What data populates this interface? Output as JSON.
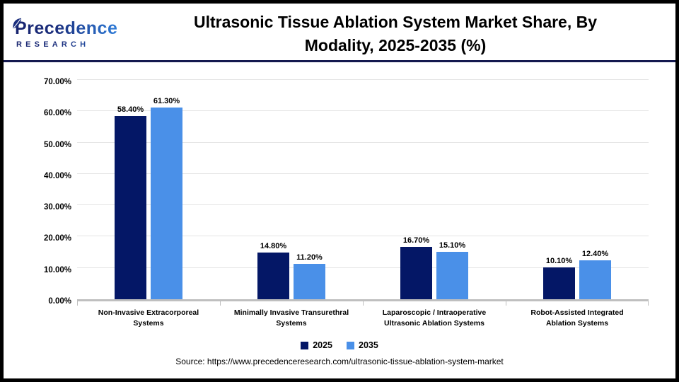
{
  "header": {
    "logo": {
      "line1": "Precedence",
      "line2": "RESEARCH"
    },
    "title_line1": "Ultrasonic Tissue Ablation System Market Share, By",
    "title_line2": "Modality, 2025-2035 (%)"
  },
  "chart_data": {
    "type": "bar",
    "title": "Ultrasonic Tissue Ablation System Market Share, By Modality, 2025-2035 (%)",
    "categories": [
      "Non-Invasive Extracorporeal Systems",
      "Minimally Invasive Transurethral Systems",
      "Laparoscopic / Intraoperative Ultrasonic Ablation Systems",
      "Robot-Assisted Integrated Ablation Systems"
    ],
    "series": [
      {
        "name": "2025",
        "color": "#041766",
        "values": [
          58.4,
          14.8,
          16.7,
          10.1
        ]
      },
      {
        "name": "2035",
        "color": "#4A90E8",
        "values": [
          61.3,
          11.2,
          15.1,
          12.4
        ]
      }
    ],
    "y_axis": {
      "min": 0,
      "max": 70,
      "step": 10,
      "tick_format": "0.00%"
    },
    "ylim": [
      0,
      70
    ],
    "grid": true,
    "legend_position": "bottom",
    "value_label_format": "0.00%"
  },
  "colors": {
    "navy_2025": "#041766",
    "blue_2035": "#4A90E8",
    "header_separator": "#14194F",
    "gridline": "#E4E4E4",
    "axis_baseline": "#BFBFBF",
    "logo_navy": "#1B2F7E",
    "logo_blue": "#2F7CD8"
  },
  "footer": {
    "source": "Source: https://www.precedenceresearch.com/ultrasonic-tissue-ablation-system-market"
  }
}
